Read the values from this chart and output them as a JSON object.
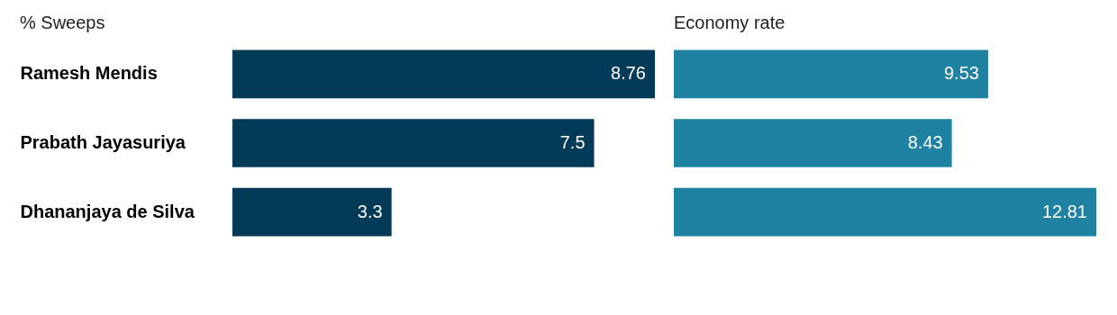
{
  "chart_data": [
    {
      "type": "bar",
      "orientation": "horizontal",
      "title": "% Sweeps",
      "categories": [
        "Ramesh Mendis",
        "Prabath Jayasuriya",
        "Dhananjaya de Silva"
      ],
      "xlim": [
        0,
        8.76
      ],
      "tick_labels": "y",
      "data_labels": true,
      "series": [
        {
          "color": "#033a57",
          "values": [
            8.76,
            7.5,
            3.3
          ]
        }
      ]
    },
    {
      "type": "bar",
      "orientation": "horizontal",
      "title": "Economy rate",
      "categories": [
        null,
        null,
        null
      ],
      "xlim": [
        0,
        12.81
      ],
      "tick_labels": false,
      "data_labels": true,
      "series": [
        {
          "color": "#1f82a2",
          "values": [
            9.53,
            8.43,
            12.81
          ]
        }
      ]
    }
  ]
}
